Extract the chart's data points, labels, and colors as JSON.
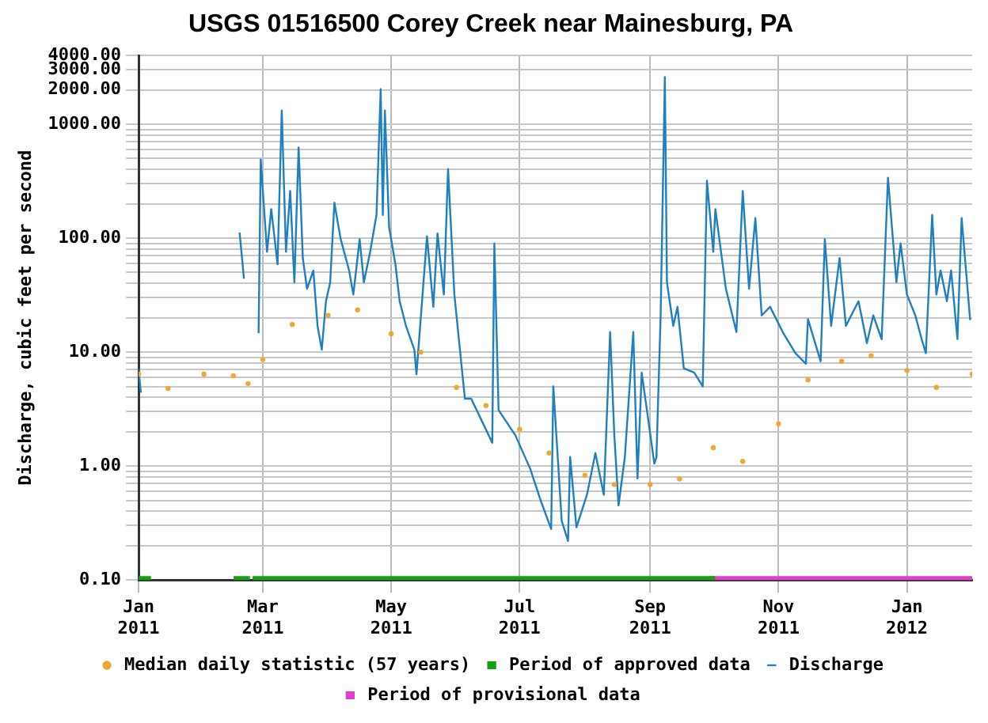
{
  "chart_data": {
    "type": "line",
    "title": "USGS 01516500 Corey Creek near Mainesburg, PA",
    "ylabel": "Discharge, cubic feet per second",
    "log": "y",
    "grid": true,
    "legend": "bottom",
    "xlim": [
      "2011-01-01",
      "2012-02-01"
    ],
    "xticks": [
      {
        "value": "2011-01-01",
        "label": "Jan 2011"
      },
      {
        "value": "2011-03-01",
        "label": "Mar 2011"
      },
      {
        "value": "2011-05-01",
        "label": "May 2011"
      },
      {
        "value": "2011-07-01",
        "label": "Jul 2011"
      },
      {
        "value": "2011-09-01",
        "label": "Sep 2011"
      },
      {
        "value": "2011-11-01",
        "label": "Nov 2011"
      },
      {
        "value": "2012-01-01",
        "label": "Jan 2012"
      }
    ],
    "ylim": [
      0.1,
      4000
    ],
    "yticks": [
      {
        "value": 0.1,
        "label": "0.10"
      },
      {
        "value": 0.2,
        "label": null
      },
      {
        "value": 0.3,
        "label": null
      },
      {
        "value": 0.4,
        "label": null
      },
      {
        "value": 0.5,
        "label": null
      },
      {
        "value": 0.6,
        "label": null
      },
      {
        "value": 0.7,
        "label": null
      },
      {
        "value": 0.8,
        "label": null
      },
      {
        "value": 0.9,
        "label": null
      },
      {
        "value": 1,
        "label": "1.00"
      },
      {
        "value": 2,
        "label": null
      },
      {
        "value": 3,
        "label": null
      },
      {
        "value": 4,
        "label": null
      },
      {
        "value": 5,
        "label": null
      },
      {
        "value": 6,
        "label": null
      },
      {
        "value": 7,
        "label": null
      },
      {
        "value": 8,
        "label": null
      },
      {
        "value": 9,
        "label": null
      },
      {
        "value": 10,
        "label": "10.00"
      },
      {
        "value": 20,
        "label": null
      },
      {
        "value": 30,
        "label": null
      },
      {
        "value": 40,
        "label": null
      },
      {
        "value": 50,
        "label": null
      },
      {
        "value": 60,
        "label": null
      },
      {
        "value": 70,
        "label": null
      },
      {
        "value": 80,
        "label": null
      },
      {
        "value": 90,
        "label": null
      },
      {
        "value": 100,
        "label": "100.00"
      },
      {
        "value": 200,
        "label": null
      },
      {
        "value": 300,
        "label": null
      },
      {
        "value": 400,
        "label": null
      },
      {
        "value": 500,
        "label": null
      },
      {
        "value": 600,
        "label": null
      },
      {
        "value": 700,
        "label": null
      },
      {
        "value": 800,
        "label": null
      },
      {
        "value": 900,
        "label": null
      },
      {
        "value": 1000,
        "label": "1000.00"
      },
      {
        "value": 2000,
        "label": "2000.00"
      },
      {
        "value": 3000,
        "label": "3000.00"
      },
      {
        "value": 4000,
        "label": "4000.00"
      }
    ],
    "series": [
      {
        "name": "Median daily statistic (57 years)",
        "type": "scatter",
        "marker": "circle",
        "color": "#f0a830",
        "x": [
          "2011-01-01",
          "2011-01-15",
          "2011-02-01",
          "2011-02-15",
          "2011-02-22",
          "2011-03-01",
          "2011-03-15",
          "2011-04-01",
          "2011-04-15",
          "2011-05-01",
          "2011-05-15",
          "2011-06-01",
          "2011-06-15",
          "2011-07-01",
          "2011-07-15",
          "2011-08-01",
          "2011-08-15",
          "2011-09-01",
          "2011-09-15",
          "2011-10-01",
          "2011-10-15",
          "2011-11-01",
          "2011-11-15",
          "2011-12-01",
          "2011-12-15",
          "2012-01-01",
          "2012-01-15",
          "2012-02-01"
        ],
        "values": [
          6.4,
          4.8,
          6.4,
          6.2,
          5.3,
          8.6,
          17.5,
          21,
          23.5,
          14.5,
          10,
          4.9,
          3.4,
          2.1,
          1.3,
          0.83,
          0.69,
          0.69,
          0.77,
          1.45,
          1.1,
          2.35,
          5.7,
          8.3,
          9.3,
          6.9,
          4.9,
          6.4
        ]
      },
      {
        "name": "Discharge",
        "marker": "none",
        "line_style": "solid",
        "color": "#1f7fc0",
        "x": [
          "2011-01-01",
          "2011-01-02",
          "2011-01-03",
          "2011-02-18",
          "2011-02-20",
          "2011-02-21",
          "2011-02-27",
          "2011-02-28",
          "2011-03-03",
          "2011-03-05",
          "2011-03-08",
          "2011-03-10",
          "2011-03-12",
          "2011-03-14",
          "2011-03-16",
          "2011-03-18",
          "2011-03-20",
          "2011-03-22",
          "2011-03-25",
          "2011-03-27",
          "2011-03-29",
          "2011-03-31",
          "2011-04-02",
          "2011-04-04",
          "2011-04-07",
          "2011-04-11",
          "2011-04-13",
          "2011-04-16",
          "2011-04-18",
          "2011-04-21",
          "2011-04-24",
          "2011-04-26",
          "2011-04-27",
          "2011-04-28",
          "2011-04-30",
          "2011-05-03",
          "2011-05-05",
          "2011-05-08",
          "2011-05-12",
          "2011-05-13",
          "2011-05-15",
          "2011-05-18",
          "2011-05-21",
          "2011-05-23",
          "2011-05-26",
          "2011-05-28",
          "2011-05-31",
          "2011-06-05",
          "2011-06-08",
          "2011-06-13",
          "2011-06-18",
          "2011-06-19",
          "2011-06-21",
          "2011-06-29",
          "2011-07-06",
          "2011-07-11",
          "2011-07-16",
          "2011-07-17",
          "2011-07-21",
          "2011-07-24",
          "2011-07-25",
          "2011-07-28",
          "2011-08-02",
          "2011-08-06",
          "2011-08-10",
          "2011-08-13",
          "2011-08-15",
          "2011-08-17",
          "2011-08-20",
          "2011-08-24",
          "2011-08-26",
          "2011-08-28",
          "2011-09-03",
          "2011-09-04",
          "2011-09-06",
          "2011-09-08",
          "2011-09-09",
          "2011-09-12",
          "2011-09-14",
          "2011-09-17",
          "2011-09-22",
          "2011-09-26",
          "2011-09-28",
          "2011-10-01",
          "2011-10-02",
          "2011-10-07",
          "2011-10-12",
          "2011-10-15",
          "2011-10-18",
          "2011-10-21",
          "2011-10-24",
          "2011-10-28",
          "2011-11-03",
          "2011-11-09",
          "2011-11-14",
          "2011-11-15",
          "2011-11-21",
          "2011-11-23",
          "2011-11-26",
          "2011-11-30",
          "2011-12-03",
          "2011-12-09",
          "2011-12-13",
          "2011-12-16",
          "2011-12-20",
          "2011-12-23",
          "2011-12-27",
          "2011-12-29",
          "2012-01-01",
          "2012-01-05",
          "2012-01-08",
          "2012-01-10",
          "2012-01-13",
          "2012-01-15",
          "2012-01-17",
          "2012-01-20",
          "2012-01-22",
          "2012-01-25",
          "2012-01-27",
          "2012-01-31"
        ],
        "values": [
          7,
          4.5,
          null,
          110,
          45,
          null,
          15,
          490,
          76,
          180,
          59,
          1320,
          76,
          260,
          41,
          625,
          67,
          36,
          52,
          17,
          10.5,
          28,
          41,
          205,
          98,
          52,
          32,
          98,
          41,
          76,
          160,
          2030,
          160,
          1320,
          125,
          59,
          28,
          17,
          10.5,
          6.4,
          19.5,
          104,
          25,
          110,
          32,
          405,
          32,
          3.9,
          3.9,
          2.5,
          1.6,
          90,
          3.1,
          1.86,
          0.95,
          0.5,
          0.28,
          5,
          0.33,
          0.22,
          1.2,
          0.29,
          0.56,
          1.3,
          0.56,
          15,
          1.86,
          0.45,
          1.2,
          15,
          0.78,
          6.6,
          1.05,
          1.2,
          21,
          2600,
          41,
          17,
          25,
          7.2,
          6.6,
          5,
          320,
          76,
          180,
          36,
          15,
          260,
          36,
          150,
          21,
          25,
          15,
          9.8,
          7.9,
          19.5,
          8.3,
          98,
          17,
          67,
          17,
          28,
          12,
          21,
          13,
          340,
          41,
          90,
          32,
          21,
          13,
          9.8,
          160,
          32,
          52,
          28,
          52,
          13,
          150,
          19.5
        ]
      },
      {
        "name": "Period of approved data",
        "marker": "none",
        "line_style": "solid",
        "color": "#14a014",
        "x": [
          "2011-01-01",
          "2011-01-05",
          "2011-01-06",
          "2011-02-17",
          "2011-02-21",
          "2011-02-22",
          "2011-02-26",
          "2011-09-30"
        ],
        "values": [
          0.1,
          0.1,
          null,
          0.1,
          0.1,
          null,
          0.1,
          0.1
        ]
      },
      {
        "name": "Period of provisional data",
        "marker": "none",
        "line_style": "solid",
        "color": "#e040c8",
        "x": [
          "2011-10-01",
          "2012-02-01"
        ],
        "values": [
          0.1,
          0.1
        ]
      }
    ]
  }
}
